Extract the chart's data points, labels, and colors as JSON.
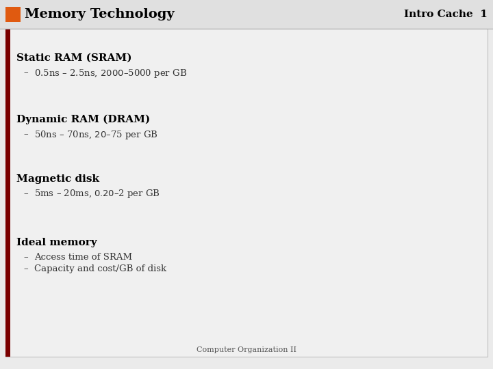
{
  "title": "Memory Technology",
  "subtitle": "Intro Cache  1",
  "title_bg_color": "#e0e0e0",
  "slide_bg_color": "#ebebeb",
  "content_bg_color": "#f0f0f0",
  "orange_rect_color": "#e05a10",
  "title_color": "#000000",
  "subtitle_color": "#000000",
  "left_bar_color": "#7a0000",
  "footer": "Computer Organization II",
  "footer_color": "#555555",
  "sections": [
    {
      "heading": "Static RAM (SRAM)",
      "bullets": [
        "0.5ns – 2.5ns, $2000 – $5000 per GB"
      ]
    },
    {
      "heading": "Dynamic RAM (DRAM)",
      "bullets": [
        "50ns – 70ns, $20 – $75 per GB"
      ]
    },
    {
      "heading": "Magnetic disk",
      "bullets": [
        "5ms – 20ms, $0.20 – $2 per GB"
      ]
    },
    {
      "heading": "Ideal memory",
      "bullets": [
        "Access time of SRAM",
        "Capacity and cost/GB of disk"
      ]
    }
  ],
  "title_bar_height": 42,
  "title_fontsize": 14,
  "subtitle_fontsize": 11,
  "heading_fontsize": 11,
  "bullet_fontsize": 9.5,
  "footer_fontsize": 8
}
